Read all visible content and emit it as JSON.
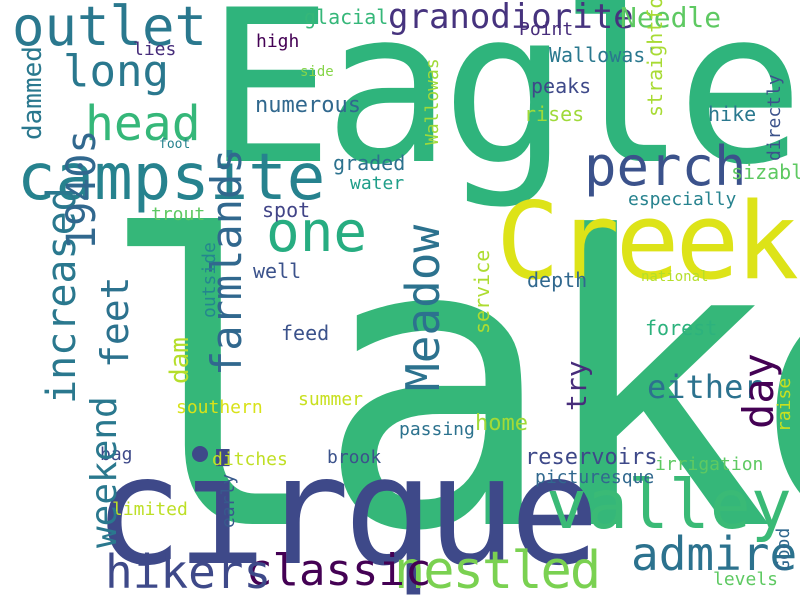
{
  "words": [
    {
      "text": "lake",
      "color": "#35b779"
    },
    {
      "text": "Eagle",
      "color": "#2fb47c"
    },
    {
      "text": "cirque",
      "color": "#3e4989"
    },
    {
      "text": "Creek",
      "color": "#dde318"
    },
    {
      "text": "campsite",
      "color": "#26828e"
    },
    {
      "text": "valley",
      "color": "#3aba76"
    },
    {
      "text": "outlet",
      "color": "#2a788e"
    },
    {
      "text": "nestled",
      "color": "#7ad151"
    },
    {
      "text": "one",
      "color": "#27ad81"
    },
    {
      "text": "perch",
      "color": "#3b528b"
    },
    {
      "text": "head",
      "color": "#35b779"
    },
    {
      "text": "long",
      "color": "#2a788e"
    },
    {
      "text": "classic",
      "color": "#440154"
    },
    {
      "text": "hikers",
      "color": "#3e4989"
    },
    {
      "text": "admire",
      "color": "#2c728e"
    },
    {
      "text": "granodiorite",
      "color": "#46337e"
    },
    {
      "text": "Needle",
      "color": "#5ec962"
    },
    {
      "text": "either",
      "color": "#2c728e"
    },
    {
      "text": "glacial",
      "color": "#35b779"
    },
    {
      "text": "high",
      "color": "#440154"
    },
    {
      "text": "lies",
      "color": "#472d7b"
    },
    {
      "text": "side",
      "color": "#86d549"
    },
    {
      "text": "Point",
      "color": "#472d7b"
    },
    {
      "text": "Wallowas'",
      "color": "#2a788e"
    },
    {
      "text": "peaks",
      "color": "#3e4989"
    },
    {
      "text": "rises",
      "color": "#9fda3a"
    },
    {
      "text": "numerous",
      "color": "#31688e"
    },
    {
      "text": "foot",
      "color": "#26828e"
    },
    {
      "text": "hike",
      "color": "#2a788e"
    },
    {
      "text": "graded",
      "color": "#2c728e"
    },
    {
      "text": "water",
      "color": "#1f9e89"
    },
    {
      "text": "sizable",
      "color": "#5ec962"
    },
    {
      "text": "especially",
      "color": "#26828e"
    },
    {
      "text": "trout",
      "color": "#5ec962"
    },
    {
      "text": "spot",
      "color": "#414487"
    },
    {
      "text": "well",
      "color": "#3b528b"
    },
    {
      "text": "depth",
      "color": "#31688e"
    },
    {
      "text": "national",
      "color": "#b5de2b"
    },
    {
      "text": "forest",
      "color": "#2db27d"
    },
    {
      "text": "feed",
      "color": "#3b528b"
    },
    {
      "text": "southern",
      "color": "#d8e219"
    },
    {
      "text": "summer",
      "color": "#c8e020"
    },
    {
      "text": "passing",
      "color": "#2c728e"
    },
    {
      "text": "home",
      "color": "#a2da37"
    },
    {
      "text": "bag",
      "color": "#3e4989"
    },
    {
      "text": "ditches",
      "color": "#c0df25"
    },
    {
      "text": "brook",
      "color": "#3b528b"
    },
    {
      "text": "reservoirs",
      "color": "#3e4989"
    },
    {
      "text": "irrigation",
      "color": "#5ec962"
    },
    {
      "text": "picturesque",
      "color": "#31688e"
    },
    {
      "text": "limited",
      "color": "#bddf26"
    },
    {
      "text": "increased",
      "color": "#2a788e"
    },
    {
      "text": "weekend",
      "color": "#2a788e"
    },
    {
      "text": "feet",
      "color": "#2c728e"
    },
    {
      "text": "1940s",
      "color": "#31688e"
    },
    {
      "text": "farmlands",
      "color": "#31688e"
    },
    {
      "text": "Meadow",
      "color": "#2c728e"
    },
    {
      "text": "day",
      "color": "#440154"
    },
    {
      "text": "dam",
      "color": "#b5de2b"
    },
    {
      "text": "try",
      "color": "#472d7b"
    },
    {
      "text": "dammed",
      "color": "#2a788e"
    },
    {
      "text": "Wallowas",
      "color": "#a0da39"
    },
    {
      "text": "straightforward",
      "color": "#a8db34"
    },
    {
      "text": "directly",
      "color": "#3b528b"
    },
    {
      "text": "service",
      "color": "#addc30"
    },
    {
      "text": "outside",
      "color": "#24868e"
    },
    {
      "text": "raise",
      "color": "#c8e020"
    },
    {
      "text": "early",
      "color": "#38598c"
    },
    {
      "text": "Good",
      "color": "#31688e"
    },
    {
      "text": "levels",
      "color": "#5ec962"
    }
  ]
}
